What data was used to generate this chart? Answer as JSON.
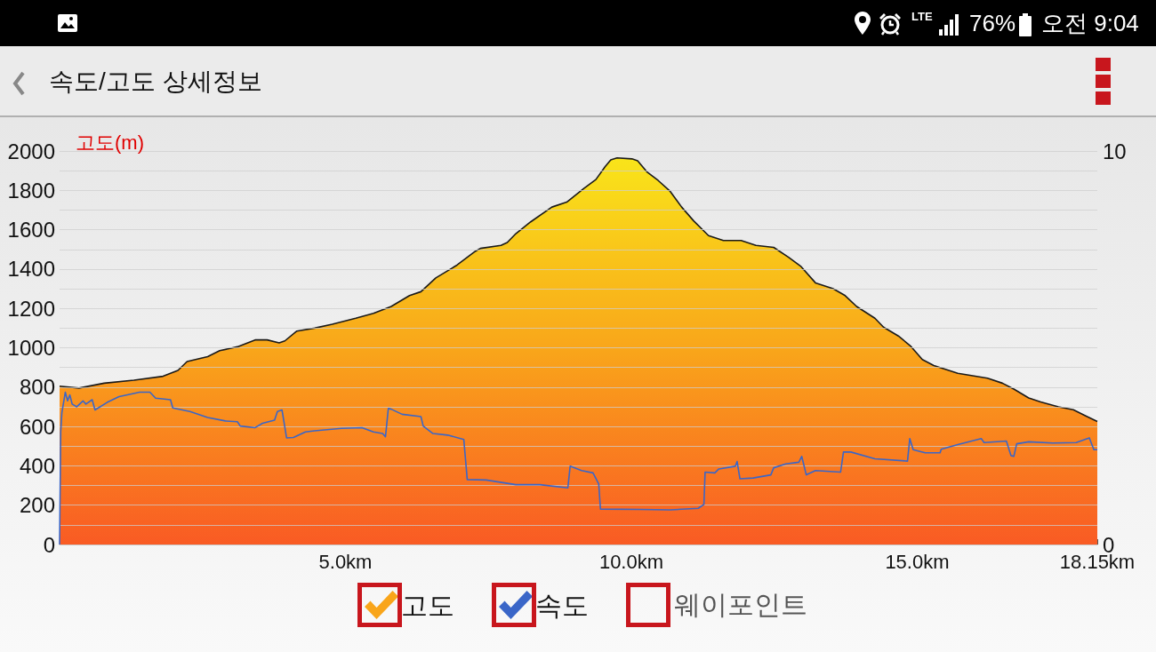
{
  "chart_data": {
    "type": "area",
    "title": "속도/고도 상세정보",
    "ylabel": "고도(m)",
    "annotations": [
      "LTE",
      "76%",
      "오전 9:04",
      "웨이포인트"
    ],
    "xlim": [
      0,
      18.15
    ],
    "xticks": [
      {
        "value": 5,
        "label": "5.0km"
      },
      {
        "value": 10,
        "label": "10.0km"
      },
      {
        "value": 15,
        "label": "15.0km"
      },
      {
        "value": 18.15,
        "label": "18.15km"
      }
    ],
    "ylim": [
      0,
      2000
    ],
    "yticks": [
      0,
      {
        "value": 100,
        "label": null
      },
      200,
      {
        "value": 300,
        "label": null
      },
      400,
      {
        "value": 500,
        "label": null
      },
      600,
      {
        "value": 700,
        "label": null
      },
      800,
      {
        "value": 900,
        "label": null
      },
      1000,
      {
        "value": 1100,
        "label": null
      },
      1200,
      {
        "value": 1300,
        "label": null
      },
      1400,
      {
        "value": 1500,
        "label": null
      },
      1600,
      {
        "value": 1700,
        "label": null
      },
      1800,
      {
        "value": 1900,
        "label": null
      },
      2000
    ],
    "y2lim": [
      0,
      10
    ],
    "y2ticks": [
      0,
      10
    ],
    "series": [
      {
        "name": "고도",
        "color": "#f9a51a",
        "x": [
          0,
          0.34,
          0.78,
          1.3,
          1.81,
          2.07,
          2.23,
          2.59,
          2.8,
          3.11,
          3.42,
          3.63,
          3.84,
          3.94,
          4.15,
          4.46,
          4.77,
          5.18,
          5.49,
          5.8,
          6.12,
          6.32,
          6.58,
          6.95,
          7.27,
          7.36,
          7.72,
          7.83,
          7.98,
          8.24,
          8.61,
          8.87,
          9.17,
          9.38,
          9.54,
          9.64,
          9.75,
          10.01,
          10.11,
          10.27,
          10.47,
          10.68,
          10.88,
          11.09,
          11.35,
          11.61,
          11.92,
          12.18,
          12.49,
          12.75,
          12.96,
          13.22,
          13.53,
          13.74,
          13.94,
          14.26,
          14.41,
          14.67,
          14.88,
          15.09,
          15.29,
          15.71,
          16.23,
          16.49,
          16.69,
          16.95,
          17.16,
          17.47,
          17.73,
          17.94,
          18.15
        ],
        "values": [
          805,
          795,
          820,
          835,
          855,
          885,
          930,
          955,
          985,
          1005,
          1040,
          1040,
          1025,
          1035,
          1085,
          1100,
          1120,
          1150,
          1175,
          1210,
          1265,
          1285,
          1355,
          1420,
          1490,
          1505,
          1520,
          1535,
          1580,
          1640,
          1715,
          1740,
          1810,
          1855,
          1920,
          1955,
          1965,
          1960,
          1950,
          1895,
          1850,
          1795,
          1715,
          1645,
          1570,
          1545,
          1545,
          1520,
          1510,
          1460,
          1415,
          1330,
          1300,
          1265,
          1210,
          1150,
          1105,
          1060,
          1010,
          940,
          910,
          870,
          845,
          820,
          790,
          745,
          725,
          700,
          685,
          655,
          625
        ]
      },
      {
        "name": "속도",
        "type": "line",
        "axis": "y2",
        "color": "#3a66c8",
        "x": [
          0,
          0.02,
          0.04,
          0.1,
          0.14,
          0.18,
          0.22,
          0.3,
          0.41,
          0.46,
          0.57,
          0.62,
          0.83,
          1.04,
          1.24,
          1.4,
          1.58,
          1.68,
          1.94,
          1.98,
          2.28,
          2.59,
          2.9,
          3.11,
          3.16,
          3.42,
          3.55,
          3.76,
          3.81,
          3.89,
          3.97,
          4.09,
          4.3,
          4.46,
          4.93,
          5.29,
          5.49,
          5.65,
          5.7,
          5.75,
          5.8,
          5.99,
          6.32,
          6.36,
          6.53,
          6.79,
          7.07,
          7.13,
          7.46,
          7.98,
          8.4,
          8.89,
          8.93,
          9.13,
          9.33,
          9.43,
          9.46,
          10.16,
          10.68,
          11.17,
          11.27,
          11.29,
          11.46,
          11.53,
          11.82,
          11.85,
          11.9,
          12.13,
          12.44,
          12.49,
          12.7,
          12.93,
          12.98,
          13.06,
          13.22,
          13.66,
          13.71,
          13.84,
          14.26,
          14.83,
          14.87,
          14.93,
          15.14,
          15.4,
          15.42,
          15.71,
          16.12,
          16.17,
          16.56,
          16.64,
          16.69,
          16.74,
          16.95,
          17.37,
          17.78,
          18.01,
          18.09,
          18.15
        ],
        "values": [
          0,
          2.86,
          3.35,
          3.87,
          3.65,
          3.8,
          3.57,
          3.5,
          3.65,
          3.57,
          3.68,
          3.42,
          3.61,
          3.76,
          3.82,
          3.87,
          3.87,
          3.72,
          3.68,
          3.47,
          3.38,
          3.23,
          3.14,
          3.12,
          3.01,
          2.97,
          3.08,
          3.16,
          3.38,
          3.42,
          2.71,
          2.72,
          2.86,
          2.89,
          2.95,
          2.97,
          2.86,
          2.82,
          2.74,
          3.46,
          3.44,
          3.31,
          3.25,
          3.01,
          2.82,
          2.78,
          2.67,
          1.65,
          1.64,
          1.52,
          1.52,
          1.44,
          1.99,
          1.88,
          1.82,
          1.54,
          0.9,
          0.89,
          0.88,
          0.92,
          1.02,
          1.84,
          1.82,
          1.92,
          1.99,
          2.11,
          1.67,
          1.69,
          1.77,
          1.95,
          2.05,
          2.09,
          2.24,
          1.77,
          1.88,
          1.84,
          2.35,
          2.35,
          2.18,
          2.12,
          2.69,
          2.41,
          2.33,
          2.33,
          2.42,
          2.54,
          2.69,
          2.59,
          2.63,
          2.26,
          2.24,
          2.56,
          2.61,
          2.58,
          2.59,
          2.71,
          2.41,
          2.41
        ]
      }
    ],
    "grid": "y",
    "legend": "bottom",
    "marker": "none"
  }
}
